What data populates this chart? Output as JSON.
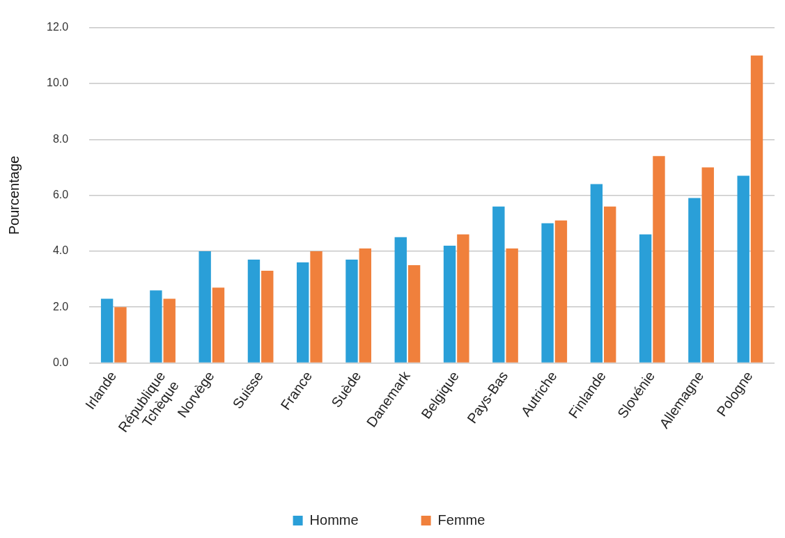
{
  "chart_data": {
    "type": "bar",
    "ylabel": "Pourcentage",
    "categories": [
      "Irlande",
      "République Tchèque",
      "Norvège",
      "Suisse",
      "France",
      "Suède",
      "Danemark",
      "Belgique",
      "Pays-Bas",
      "Autriche",
      "Finlande",
      "Slovénie",
      "Allemagne",
      "Pologne"
    ],
    "series": [
      {
        "name": "Homme",
        "color": "#2a9fd8",
        "values": [
          2.3,
          2.6,
          4.0,
          3.7,
          3.6,
          3.7,
          4.5,
          4.2,
          5.6,
          5.0,
          6.4,
          4.6,
          5.9,
          6.7
        ]
      },
      {
        "name": "Femme",
        "color": "#f0803c",
        "values": [
          2.0,
          2.3,
          2.7,
          3.3,
          4.0,
          4.1,
          3.5,
          4.6,
          4.1,
          5.1,
          5.6,
          7.4,
          7.0,
          11.0
        ]
      }
    ],
    "ylim": [
      0,
      12
    ],
    "yticks": [
      {
        "value": 0,
        "label": "0.0"
      },
      {
        "value": 2,
        "label": "2.0"
      },
      {
        "value": 4,
        "label": "4.0"
      },
      {
        "value": 6,
        "label": "6.0"
      },
      {
        "value": 8,
        "label": "8.0"
      },
      {
        "value": 10,
        "label": "10.0"
      },
      {
        "value": 12,
        "label": "12.0"
      }
    ],
    "grid": "y",
    "legend": "bottom"
  }
}
